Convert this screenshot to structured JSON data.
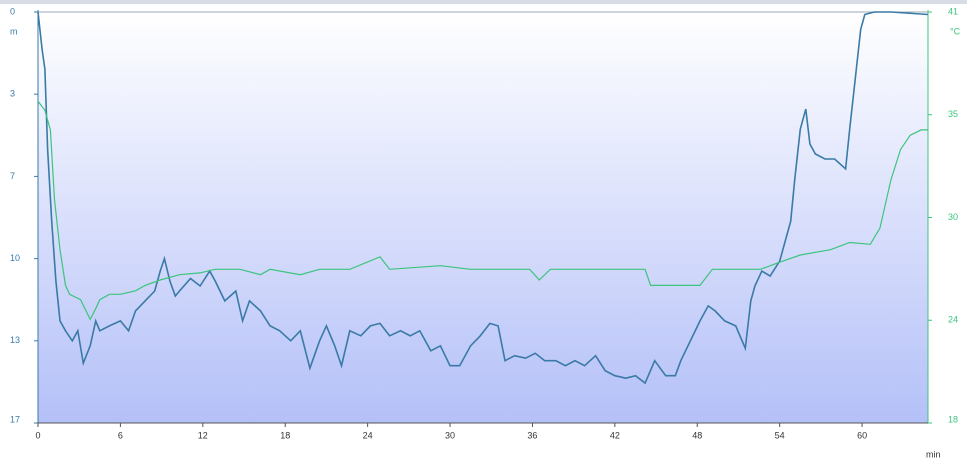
{
  "chart_data": {
    "type": "line",
    "x_label": "min",
    "y_label": "m",
    "y2_label": "°C",
    "xlim": [
      0,
      64.8
    ],
    "xticks": [
      0,
      6,
      12,
      18,
      24,
      30,
      36,
      42,
      48,
      54,
      60
    ],
    "ylim": [
      0,
      16.5
    ],
    "y_inverted": true,
    "yticks": [
      {
        "value": 0,
        "label": "0"
      },
      {
        "value": 3.3,
        "label": "3"
      },
      {
        "value": 6.6,
        "label": "7"
      },
      {
        "value": 9.9,
        "label": "10"
      },
      {
        "value": 13.2,
        "label": "13"
      },
      {
        "value": 16.5,
        "label": "17"
      }
    ],
    "y2lim": [
      18,
      41
    ],
    "y2ticks": [
      {
        "value": 18,
        "label": "18"
      },
      {
        "value": 23.75,
        "label": "24"
      },
      {
        "value": 29.5,
        "label": "30"
      },
      {
        "value": 35.25,
        "label": "35"
      },
      {
        "value": 41,
        "label": "41"
      }
    ],
    "series": [
      {
        "color": "#3a7aa6",
        "x": [
          0,
          0.3,
          0.5,
          0.7,
          1.0,
          1.3,
          1.6,
          2.0,
          2.5,
          2.9,
          3.3,
          3.8,
          4.2,
          4.5,
          5.2,
          6.0,
          6.6,
          7.1,
          7.8,
          8.5,
          8.9,
          9.2,
          9.6,
          10.0,
          10.3,
          11.1,
          11.8,
          12.5,
          12.9,
          13.6,
          14.4,
          14.9,
          15.4,
          16.2,
          16.9,
          17.6,
          18.4,
          19.1,
          19.8,
          20.5,
          21.0,
          21.6,
          22.1,
          22.7,
          23.5,
          24.2,
          24.9,
          25.6,
          26.4,
          27.1,
          27.8,
          28.6,
          29.3,
          30.0,
          30.7,
          31.5,
          32.2,
          32.9,
          33.5,
          34.0,
          34.7,
          35.5,
          36.2,
          36.9,
          37.7,
          38.4,
          39.1,
          39.8,
          40.6,
          41.3,
          42.0,
          42.8,
          43.5,
          44.2,
          44.9,
          45.7,
          46.4,
          46.8,
          47.5,
          48.2,
          48.8,
          49.3,
          50.0,
          50.8,
          51.5,
          51.9,
          52.2,
          52.7,
          53.3,
          54.0,
          54.8,
          55.1,
          55.5,
          55.9,
          56.2,
          56.6,
          57.3,
          58.0,
          58.8,
          59.1,
          59.5,
          59.9,
          60.2,
          60.9,
          62.1,
          64.8
        ],
        "values": [
          0,
          1.5,
          2.3,
          5.5,
          8.4,
          10.8,
          12.4,
          12.8,
          13.2,
          12.8,
          14.1,
          13.4,
          12.4,
          12.8,
          12.6,
          12.4,
          12.8,
          12.0,
          11.6,
          11.2,
          10.4,
          9.9,
          10.8,
          11.4,
          11.2,
          10.7,
          11.0,
          10.4,
          10.8,
          11.6,
          11.2,
          12.4,
          11.6,
          12.0,
          12.6,
          12.8,
          13.2,
          12.8,
          14.3,
          13.2,
          12.6,
          13.4,
          14.2,
          12.8,
          13.0,
          12.6,
          12.5,
          13.0,
          12.8,
          13.0,
          12.8,
          13.6,
          13.4,
          14.2,
          14.2,
          13.4,
          13.0,
          12.5,
          12.6,
          14.0,
          13.8,
          13.9,
          13.7,
          14.0,
          14.0,
          14.2,
          14.0,
          14.2,
          13.8,
          14.4,
          14.6,
          14.7,
          14.6,
          14.9,
          14.0,
          14.6,
          14.6,
          14.0,
          13.2,
          12.4,
          11.8,
          12.0,
          12.4,
          12.6,
          13.5,
          11.6,
          11.0,
          10.4,
          10.6,
          10.0,
          8.4,
          6.7,
          4.7,
          3.9,
          5.3,
          5.7,
          5.9,
          5.9,
          6.3,
          4.7,
          2.7,
          0.7,
          0.1,
          0,
          0,
          0.1
        ]
      },
      {
        "color": "#3cc47c",
        "axis": "y2",
        "x": [
          0,
          0.5,
          0.9,
          1.2,
          1.6,
          2.0,
          2.3,
          3.1,
          3.8,
          4.2,
          4.5,
          5.2,
          6.0,
          7.1,
          7.8,
          8.9,
          10.3,
          11.8,
          12.9,
          14.7,
          16.2,
          16.9,
          19.1,
          20.5,
          22.7,
          24.9,
          25.6,
          29.3,
          31.5,
          35.8,
          36.5,
          37.3,
          44.2,
          44.6,
          48.2,
          49.1,
          51.1,
          52.6,
          54.0,
          55.5,
          57.7,
          59.1,
          60.6,
          61.3,
          62.1,
          62.8,
          63.5,
          64.3,
          64.8
        ],
        "values": [
          36.0,
          35.5,
          34.4,
          30.5,
          27.7,
          25.7,
          25.2,
          24.9,
          23.8,
          24.4,
          24.9,
          25.2,
          25.2,
          25.4,
          25.7,
          26.0,
          26.3,
          26.4,
          26.6,
          26.6,
          26.3,
          26.6,
          26.3,
          26.6,
          26.6,
          27.3,
          26.6,
          26.8,
          26.6,
          26.6,
          26.0,
          26.6,
          26.6,
          25.7,
          25.7,
          26.6,
          26.6,
          26.6,
          27.0,
          27.4,
          27.7,
          28.1,
          28.0,
          28.9,
          31.6,
          33.3,
          34.1,
          34.4,
          34.4
        ]
      }
    ]
  }
}
